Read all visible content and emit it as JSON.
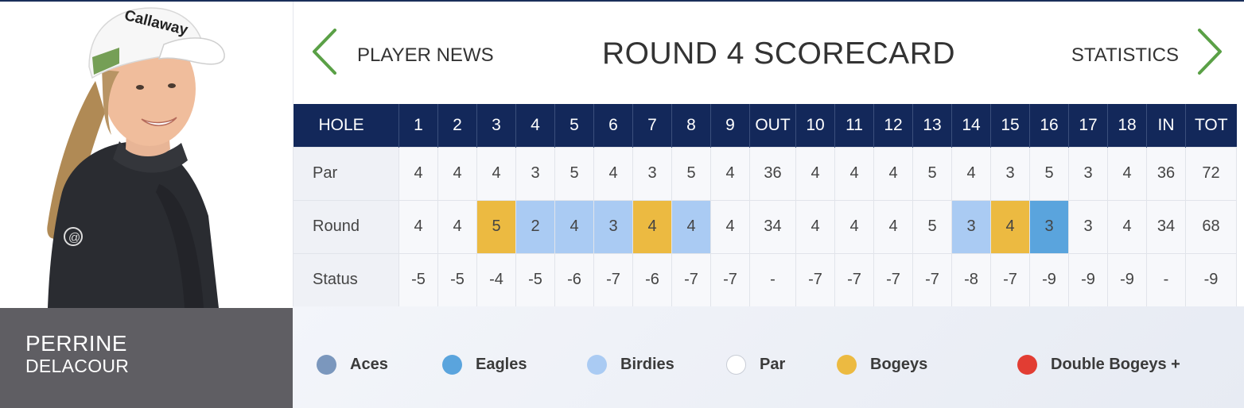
{
  "header": {
    "title": "ROUND 4 SCORECARD",
    "prev_label": "PLAYER NEWS",
    "next_label": "STATISTICS"
  },
  "player": {
    "first_name": "PERRINE",
    "last_name": "DELACOUR",
    "cap_logo_text": "Callaway",
    "shirt_logo_text": "@"
  },
  "scorecard": {
    "headers": [
      "HOLE",
      "1",
      "2",
      "3",
      "4",
      "5",
      "6",
      "7",
      "8",
      "9",
      "OUT",
      "10",
      "11",
      "12",
      "13",
      "14",
      "15",
      "16",
      "17",
      "18",
      "IN",
      "TOT"
    ],
    "rows": [
      {
        "label": "Par",
        "values": [
          "4",
          "4",
          "4",
          "3",
          "5",
          "4",
          "3",
          "5",
          "4",
          "36",
          "4",
          "4",
          "4",
          "5",
          "4",
          "3",
          "5",
          "3",
          "4",
          "36",
          "72"
        ]
      },
      {
        "label": "Round",
        "values": [
          "4",
          "4",
          "5",
          "2",
          "4",
          "3",
          "4",
          "4",
          "4",
          "34",
          "4",
          "4",
          "4",
          "5",
          "3",
          "4",
          "3",
          "3",
          "4",
          "34",
          "68"
        ]
      },
      {
        "label": "Status",
        "values": [
          "-5",
          "-5",
          "-4",
          "-5",
          "-6",
          "-7",
          "-6",
          "-7",
          "-7",
          "-",
          "-7",
          "-7",
          "-7",
          "-7",
          "-8",
          "-7",
          "-9",
          "-9",
          "-9",
          "-",
          "-9"
        ]
      }
    ],
    "round_results": [
      "par",
      "par",
      "bogey",
      "birdie",
      "birdie",
      "birdie",
      "bogey",
      "birdie",
      "par",
      "",
      "par",
      "par",
      "par",
      "par",
      "birdie",
      "bogey",
      "eagle",
      "par",
      "par",
      "",
      ""
    ]
  },
  "legend": [
    {
      "label": "Aces",
      "color": "#7b97bd"
    },
    {
      "label": "Eagles",
      "color": "#5aa4dd"
    },
    {
      "label": "Birdies",
      "color": "#aacbf3"
    },
    {
      "label": "Par",
      "color": "#ffffff"
    },
    {
      "label": "Bogeys",
      "color": "#ecba41"
    },
    {
      "label": "Double Bogeys +",
      "color": "#e23d33"
    }
  ],
  "colors": {
    "header_bg": "#13285a",
    "nav_chevron": "#5aa046",
    "name_panel_bg": "#5f5e63"
  },
  "icons": {
    "prev": "chevron-left-icon",
    "next": "chevron-right-icon"
  }
}
